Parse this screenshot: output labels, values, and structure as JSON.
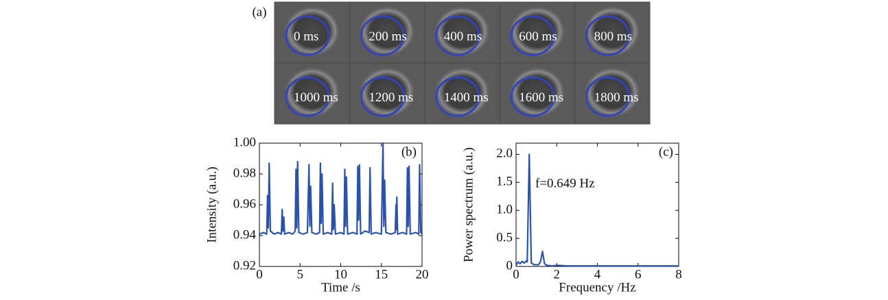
{
  "image_panel": {
    "label": "(a)",
    "frames": [
      "0 ms",
      "200 ms",
      "400  ms",
      "600 ms",
      "800 ms",
      "1000 ms",
      "1200 ms",
      "1400  ms",
      "1600 ms",
      "1800 ms"
    ]
  },
  "chart_data": [
    {
      "type": "line",
      "label": "(b)",
      "x_label": "Time /s",
      "y_label": "Intensity (a.u.)",
      "color": "#2a52a8",
      "x": [
        0,
        0.5,
        0.9,
        1.0,
        1.1,
        1.2,
        1.35,
        1.8,
        2.3,
        2.7,
        2.8,
        2.9,
        3.0,
        3.1,
        3.6,
        4.1,
        4.4,
        4.5,
        4.6,
        4.7,
        4.85,
        5.4,
        5.9,
        6.1,
        6.2,
        6.3,
        6.45,
        7.0,
        7.4,
        7.5,
        7.6,
        7.7,
        7.85,
        8.4,
        8.9,
        9.0,
        9.1,
        9.2,
        9.35,
        10.0,
        10.4,
        10.5,
        10.6,
        10.7,
        10.85,
        11.5,
        12.0,
        12.1,
        12.2,
        12.3,
        12.45,
        13.0,
        13.5,
        13.6,
        13.75,
        14.3,
        15.0,
        15.2,
        15.3,
        15.4,
        15.55,
        16.2,
        16.7,
        16.8,
        16.85,
        16.9,
        17.0,
        17.6,
        18.1,
        18.2,
        18.3,
        18.4,
        18.55,
        19.2,
        19.6,
        19.7,
        19.85,
        20
      ],
      "values": [
        0.941,
        0.942,
        0.941,
        0.966,
        0.945,
        0.987,
        0.943,
        0.941,
        0.942,
        0.941,
        0.957,
        0.943,
        0.952,
        0.941,
        0.942,
        0.941,
        0.943,
        0.983,
        0.945,
        0.988,
        0.942,
        0.941,
        0.942,
        0.986,
        0.946,
        0.972,
        0.942,
        0.941,
        0.942,
        0.987,
        0.948,
        0.98,
        0.941,
        0.942,
        0.941,
        0.974,
        0.944,
        0.96,
        0.941,
        0.942,
        0.941,
        0.983,
        0.946,
        0.978,
        0.941,
        0.942,
        0.941,
        0.985,
        0.95,
        0.986,
        0.941,
        0.943,
        0.942,
        0.984,
        0.941,
        0.942,
        0.941,
        1.0,
        0.946,
        0.976,
        0.942,
        0.941,
        0.942,
        0.96,
        0.944,
        0.965,
        0.941,
        0.942,
        0.941,
        0.984,
        0.946,
        0.985,
        0.941,
        0.942,
        0.941,
        0.986,
        0.942,
        0.941
      ],
      "xlim": [
        0,
        20
      ],
      "xticks": [
        0,
        5,
        10,
        15,
        20
      ],
      "ylim": [
        0.92,
        1.0
      ],
      "yticks": [
        0.92,
        0.94,
        0.96,
        0.98,
        {
          "value": 1.0,
          "label": "1.00"
        }
      ]
    },
    {
      "type": "line",
      "label": "(c)",
      "x_label": "Frequency /Hz",
      "y_label": "Power spectrum (a.u.)",
      "color": "#2a52a8",
      "annotation": "f=0.649 Hz",
      "x": [
        0,
        0.1,
        0.2,
        0.3,
        0.4,
        0.5,
        0.55,
        0.649,
        0.75,
        0.9,
        1.1,
        1.2,
        1.3,
        1.4,
        1.5,
        1.8,
        2.0,
        2.5,
        3,
        4,
        5,
        6,
        7,
        8
      ],
      "values": [
        0.02,
        0.08,
        0.05,
        0.09,
        0.06,
        0.1,
        0.08,
        2.0,
        0.06,
        0.03,
        0.03,
        0.08,
        0.27,
        0.05,
        0.02,
        0.01,
        0.02,
        0.01,
        0.01,
        0.01,
        0.01,
        0.01,
        0.01,
        0.01
      ],
      "xlim": [
        0,
        8
      ],
      "xticks": [
        0,
        2,
        4,
        6,
        8
      ],
      "ylim": [
        0,
        2.2
      ],
      "yticks": [
        0,
        0.5,
        {
          "value": 1.0,
          "label": "1.0"
        },
        1.5,
        {
          "value": 2.0,
          "label": "2.0"
        }
      ]
    }
  ]
}
